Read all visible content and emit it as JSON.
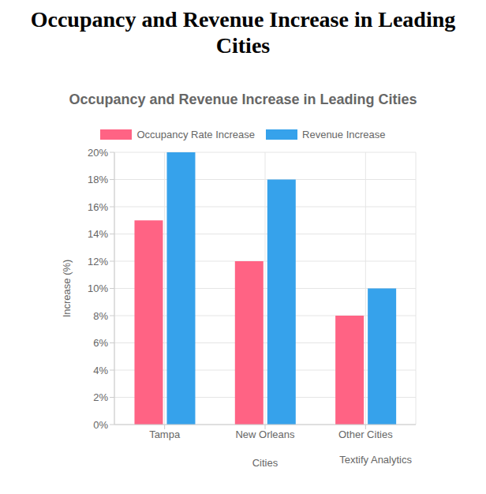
{
  "header": {
    "title": "Occupancy and Revenue Increase in Leading Cities"
  },
  "chart_data": {
    "type": "bar",
    "title": "Occupancy and Revenue Increase in Leading Cities",
    "categories": [
      "Tampa",
      "New Orleans",
      "Other Cities"
    ],
    "series": [
      {
        "name": "Occupancy Rate Increase",
        "color": "#ff6384",
        "values": [
          15,
          12,
          8
        ]
      },
      {
        "name": "Revenue Increase",
        "color": "#36a2eb",
        "values": [
          20,
          18,
          10
        ]
      }
    ],
    "x_label": "Cities",
    "y_label": "Increase (%)",
    "ylim": [
      0,
      20
    ],
    "yticks": [
      {
        "value": 0,
        "label": "0%"
      },
      {
        "value": 2,
        "label": "2%"
      },
      {
        "value": 4,
        "label": "4%"
      },
      {
        "value": 6,
        "label": "6%"
      },
      {
        "value": 8,
        "label": "8%"
      },
      {
        "value": 10,
        "label": "10%"
      },
      {
        "value": 12,
        "label": "12%"
      },
      {
        "value": 14,
        "label": "14%"
      },
      {
        "value": 16,
        "label": "16%"
      },
      {
        "value": 18,
        "label": "18%"
      },
      {
        "value": 20,
        "label": "20%"
      }
    ],
    "grid": true,
    "legend": "top",
    "annotations": [
      "Textify Analytics"
    ]
  }
}
